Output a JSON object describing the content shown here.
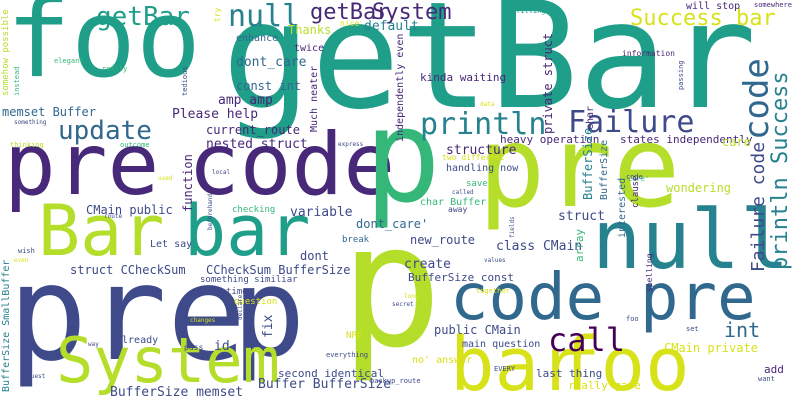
{
  "colors": {
    "background": "#ffffff",
    "teal": "#1f9e89",
    "teal_dark": "#26828e",
    "blue": "#31688e",
    "indigo": "#3e4a89",
    "purple": "#482878",
    "deep_purple": "#440154",
    "green": "#35b779",
    "lime": "#6ece58",
    "yellow_green": "#b5de2b",
    "yellow": "#d8e219"
  },
  "words": [
    {
      "text": "foo",
      "color": "teal"
    },
    {
      "text": "getBar",
      "color": "teal"
    },
    {
      "text": "pre",
      "color": "purple"
    },
    {
      "text": "code",
      "color": "purple"
    },
    {
      "text": "p",
      "color": "green"
    },
    {
      "text": "pre",
      "color": "yellow_green"
    },
    {
      "text": "Bar",
      "color": "yellow_green"
    },
    {
      "text": "bar",
      "color": "teal"
    },
    {
      "text": "null",
      "color": "teal_dark"
    },
    {
      "text": "pre",
      "color": "indigo"
    },
    {
      "text": "p",
      "color": "indigo"
    },
    {
      "text": "p",
      "color": "yellow_green"
    },
    {
      "text": "code",
      "color": "blue"
    },
    {
      "text": "pre",
      "color": "blue"
    },
    {
      "text": "System",
      "color": "yellow_green"
    },
    {
      "text": "bar",
      "color": "yellow"
    },
    {
      "text": "foo",
      "color": "yellow"
    },
    {
      "text": "getBar",
      "color": "teal"
    },
    {
      "text": "null",
      "color": "teal_dark"
    },
    {
      "text": "getBar",
      "color": "purple"
    },
    {
      "text": "System",
      "color": "purple"
    },
    {
      "text": "update",
      "color": "blue"
    },
    {
      "text": "println",
      "color": "teal_dark"
    },
    {
      "text": "Failure",
      "color": "indigo"
    },
    {
      "text": "Success bar",
      "color": "yellow"
    },
    {
      "text": "code",
      "color": "blue"
    },
    {
      "text": "println Success",
      "color": "teal_dark"
    },
    {
      "text": "Failure code",
      "color": "indigo"
    },
    {
      "text": "call",
      "color": "deep_purple"
    },
    {
      "text": "int",
      "color": "blue"
    },
    {
      "text": "default",
      "color": "teal_dark"
    },
    {
      "text": "dont_care",
      "color": "blue"
    },
    {
      "text": "enhance",
      "color": "blue"
    },
    {
      "text": "Thanks",
      "color": "yellow_green"
    },
    {
      "text": "twice",
      "color": "purple"
    },
    {
      "text": "Much neater",
      "color": "purple"
    },
    {
      "text": "nice",
      "color": "yellow"
    },
    {
      "text": "try",
      "color": "yellow"
    },
    {
      "text": "const int",
      "color": "blue"
    },
    {
      "text": "amp amp",
      "color": "purple"
    },
    {
      "text": "Please help",
      "color": "purple"
    },
    {
      "text": "memset Buffer",
      "color": "blue"
    },
    {
      "text": "current_route",
      "color": "purple"
    },
    {
      "text": "nested struct",
      "color": "purple"
    },
    {
      "text": "function",
      "color": "purple"
    },
    {
      "text": "structure",
      "color": "purple"
    },
    {
      "text": "two different",
      "color": "yellow"
    },
    {
      "text": "handling now",
      "color": "indigo"
    },
    {
      "text": "save",
      "color": "green"
    },
    {
      "text": "away",
      "color": "indigo"
    },
    {
      "text": "variable",
      "color": "indigo"
    },
    {
      "text": "CMain public",
      "color": "indigo"
    },
    {
      "text": "checking",
      "color": "green"
    },
    {
      "text": "dont_care'",
      "color": "blue"
    },
    {
      "text": "char Buffer",
      "color": "green"
    },
    {
      "text": "new_route",
      "color": "indigo"
    },
    {
      "text": "struct",
      "color": "indigo"
    },
    {
      "text": "Let say",
      "color": "indigo"
    },
    {
      "text": "dont",
      "color": "indigo"
    },
    {
      "text": "break",
      "color": "blue"
    },
    {
      "text": "create",
      "color": "indigo"
    },
    {
      "text": "class CMain",
      "color": "indigo"
    },
    {
      "text": "struct CCheckSum",
      "color": "indigo"
    },
    {
      "text": "CCheckSum BufferSize",
      "color": "indigo"
    },
    {
      "text": "something similiar",
      "color": "indigo"
    },
    {
      "text": "BufferSize const",
      "color": "indigo"
    },
    {
      "text": "time",
      "color": "indigo"
    },
    {
      "text": "question",
      "color": "yellow"
    },
    {
      "text": "fix",
      "color": "indigo"
    },
    {
      "text": "public CMain",
      "color": "indigo"
    },
    {
      "text": "id",
      "color": "indigo"
    },
    {
      "text": "already",
      "color": "indigo"
    },
    {
      "text": "pass",
      "color": "indigo"
    },
    {
      "text": "NPE",
      "color": "yellow"
    },
    {
      "text": "main question",
      "color": "indigo"
    },
    {
      "text": "no' answer",
      "color": "yellow"
    },
    {
      "text": "second identical",
      "color": "indigo"
    },
    {
      "text": "Buffer BufferSize",
      "color": "indigo"
    },
    {
      "text": "BufferSize memset",
      "color": "indigo"
    },
    {
      "text": "last thing",
      "color": "indigo"
    },
    {
      "text": "really gave",
      "color": "yellow"
    },
    {
      "text": "CMain private",
      "color": "yellow"
    },
    {
      "text": "add",
      "color": "purple"
    },
    {
      "text": "want",
      "color": "indigo"
    },
    {
      "text": "everything",
      "color": "indigo"
    },
    {
      "text": "EVERY",
      "color": "indigo"
    },
    {
      "text": "backup_route",
      "color": "indigo"
    },
    {
      "text": "heavy operation",
      "color": "purple"
    },
    {
      "text": "states independently",
      "color": "purple"
    },
    {
      "text": "kinda waiting",
      "color": "purple"
    },
    {
      "text": "information",
      "color": "purple"
    },
    {
      "text": "will stop",
      "color": "purple"
    },
    {
      "text": "somewhere",
      "color": "purple"
    },
    {
      "text": "wondering",
      "color": "yellow_green"
    },
    {
      "text": "care",
      "color": "yellow_green"
    },
    {
      "text": "care'",
      "color": "green"
    },
    {
      "text": "filling",
      "color": "teal"
    },
    {
      "text": "private struct",
      "color": "purple"
    },
    {
      "text": "independently even",
      "color": "purple"
    },
    {
      "text": "char",
      "color": "purple"
    },
    {
      "text": "BufferSize",
      "color": "teal_dark"
    },
    {
      "text": "BufferSize",
      "color": "blue"
    },
    {
      "text": "array",
      "color": "green"
    },
    {
      "text": "interested",
      "color": "blue"
    },
    {
      "text": "clause",
      "color": "purple"
    },
    {
      "text": "spelling",
      "color": "purple"
    },
    {
      "text": "set",
      "color": "indigo"
    },
    {
      "text": "passing",
      "color": "indigo"
    },
    {
      "text": "somehow possible",
      "color": "yellow_green"
    },
    {
      "text": "instead",
      "color": "green"
    },
    {
      "text": "elegant",
      "color": "green"
    },
    {
      "text": "really",
      "color": "green"
    },
    {
      "text": "tedious",
      "color": "indigo"
    },
    {
      "text": "something",
      "color": "indigo"
    },
    {
      "text": "thinking",
      "color": "yellow_green"
    },
    {
      "text": "outcome",
      "color": "green"
    },
    {
      "text": "express",
      "color": "indigo"
    },
    {
      "text": "used",
      "color": "yellow"
    },
    {
      "text": "local",
      "color": "indigo"
    },
    {
      "text": "data",
      "color": "yellow"
    },
    {
      "text": "BufferSize SmallBuffer",
      "color": "teal_dark"
    },
    {
      "text": "wish",
      "color": "indigo"
    },
    {
      "text": "even",
      "color": "yellow"
    },
    {
      "text": "route",
      "color": "indigo"
    },
    {
      "text": "beforehand",
      "color": "indigo"
    },
    {
      "text": "called",
      "color": "indigo"
    },
    {
      "text": "fields",
      "color": "indigo"
    },
    {
      "text": "values",
      "color": "indigo"
    },
    {
      "text": "secret",
      "color": "indigo"
    },
    {
      "text": "long",
      "color": "yellow"
    },
    {
      "text": "together",
      "color": "yellow"
    },
    {
      "text": "changes",
      "color": "yellow"
    },
    {
      "text": "declare",
      "color": "indigo"
    },
    {
      "text": "way",
      "color": "indigo"
    },
    {
      "text": "request",
      "color": "indigo"
    },
    {
      "text": "code",
      "color": "indigo"
    },
    {
      "text": "foo",
      "color": "indigo"
    }
  ]
}
